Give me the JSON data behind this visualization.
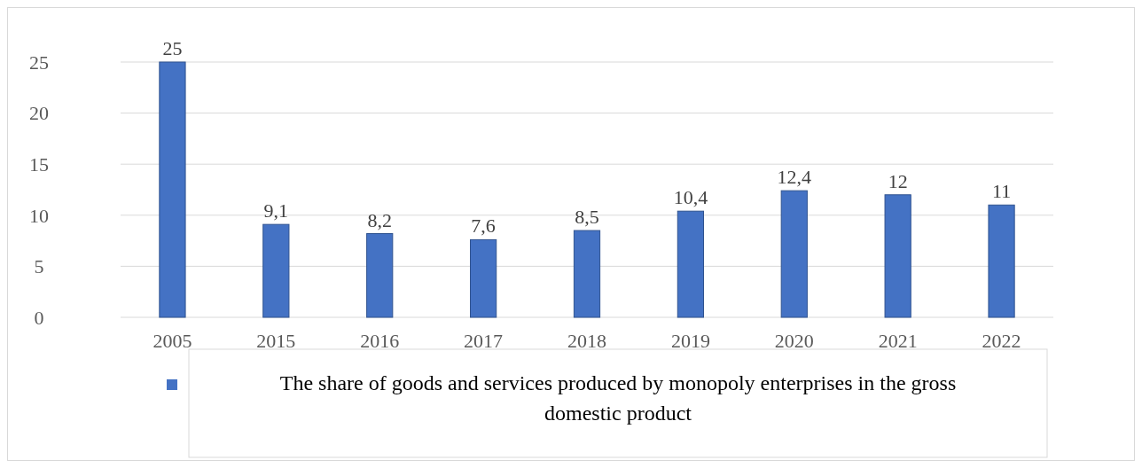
{
  "chart_data": {
    "type": "bar",
    "categories": [
      "2005",
      "2015",
      "2016",
      "2017",
      "2018",
      "2019",
      "2020",
      "2021",
      "2022"
    ],
    "series": [
      {
        "name": "The share of goods and services produced by monopoly enterprises in the gross domestic product",
        "color": "#4472c4",
        "values": [
          25,
          9.1,
          8.2,
          7.6,
          8.5,
          10.4,
          12.4,
          12,
          11
        ]
      }
    ],
    "value_labels": [
      "25",
      "9,1",
      "8,2",
      "7,6",
      "8,5",
      "10,4",
      "12,4",
      "12",
      "11"
    ],
    "ylim": [
      0,
      25
    ],
    "yticks": [
      0,
      5,
      10,
      15,
      20,
      25
    ],
    "grid": "y",
    "legend": "bottom"
  }
}
